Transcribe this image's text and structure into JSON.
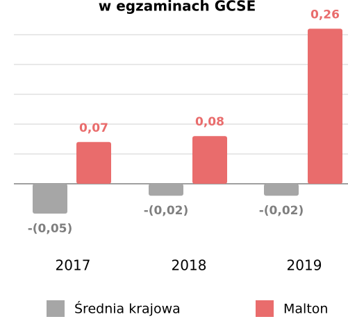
{
  "chart_data": {
    "type": "bar",
    "title": "w egzaminach GCSE",
    "categories": [
      "2017",
      "2018",
      "2019"
    ],
    "series": [
      {
        "name": "Średnia krajowa",
        "color": "#a6a6a6",
        "values": [
          -0.05,
          -0.02,
          -0.02
        ],
        "value_labels": [
          "-(0,05)",
          "-(0,02)",
          "-(0,02)"
        ]
      },
      {
        "name": "Malton",
        "color": "#e96c6c",
        "values": [
          0.07,
          0.08,
          0.26
        ],
        "value_labels": [
          "0,07",
          "0,08",
          "0,26"
        ]
      }
    ],
    "ylim": [
      -0.1,
      0.3
    ],
    "yticks": [
      0,
      0.05,
      0.1,
      0.15,
      0.2,
      0.25
    ],
    "grid": true,
    "legend": "bottom"
  }
}
